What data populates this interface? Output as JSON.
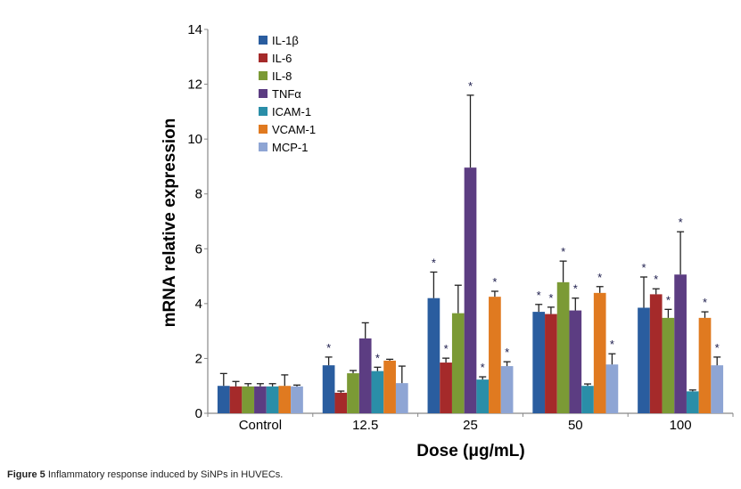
{
  "caption": {
    "label": "Figure 5",
    "text": " Inflammatory response induced by SiNPs in HUVECs."
  },
  "chart_data": {
    "type": "bar",
    "title": "",
    "xlabel": "Dose (μg/mL)",
    "ylabel": "mRNA relative expression",
    "ylim": [
      0,
      14
    ],
    "yticks": [
      0,
      2,
      4,
      6,
      8,
      10,
      12,
      14
    ],
    "grid": false,
    "legend_position": "top-left",
    "categories": [
      "Control",
      "12.5",
      "25",
      "50",
      "100"
    ],
    "series": [
      {
        "name": "IL-1β",
        "color": "#2a5d9f",
        "values": [
          1.0,
          1.75,
          4.2,
          3.7,
          3.85
        ],
        "errors": [
          0.45,
          0.3,
          0.95,
          0.27,
          1.12
        ],
        "significant": [
          false,
          true,
          true,
          true,
          true
        ]
      },
      {
        "name": "IL-6",
        "color": "#a52a2a",
        "values": [
          0.98,
          0.75,
          1.85,
          3.62,
          4.34
        ],
        "errors": [
          0.18,
          0.06,
          0.16,
          0.25,
          0.2
        ],
        "significant": [
          false,
          false,
          true,
          true,
          true
        ]
      },
      {
        "name": "IL-8",
        "color": "#7b9a35",
        "values": [
          0.98,
          1.46,
          3.65,
          4.78,
          3.48
        ],
        "errors": [
          0.1,
          0.1,
          1.02,
          0.77,
          0.31
        ],
        "significant": [
          false,
          false,
          false,
          true,
          true
        ]
      },
      {
        "name": "TNFα",
        "color": "#5c3d82",
        "values": [
          0.98,
          2.73,
          8.96,
          3.75,
          5.06
        ],
        "errors": [
          0.1,
          0.57,
          2.64,
          0.45,
          1.56
        ],
        "significant": [
          false,
          false,
          true,
          true,
          true
        ]
      },
      {
        "name": "ICAM-1",
        "color": "#2a8ea8",
        "values": [
          0.98,
          1.54,
          1.23,
          1.0,
          0.8
        ],
        "errors": [
          0.1,
          0.14,
          0.1,
          0.07,
          0.05
        ],
        "significant": [
          false,
          true,
          true,
          false,
          false
        ]
      },
      {
        "name": "VCAM-1",
        "color": "#e07a20",
        "values": [
          1.0,
          1.92,
          4.25,
          4.39,
          3.48
        ],
        "errors": [
          0.4,
          0.05,
          0.2,
          0.23,
          0.22
        ],
        "significant": [
          false,
          false,
          true,
          true,
          true
        ]
      },
      {
        "name": "MCP-1",
        "color": "#8ea5d4",
        "values": [
          0.98,
          1.1,
          1.72,
          1.78,
          1.75
        ],
        "errors": [
          0.05,
          0.62,
          0.16,
          0.39,
          0.3
        ],
        "significant": [
          false,
          false,
          true,
          true,
          true
        ]
      }
    ],
    "significance_marker": "*"
  }
}
